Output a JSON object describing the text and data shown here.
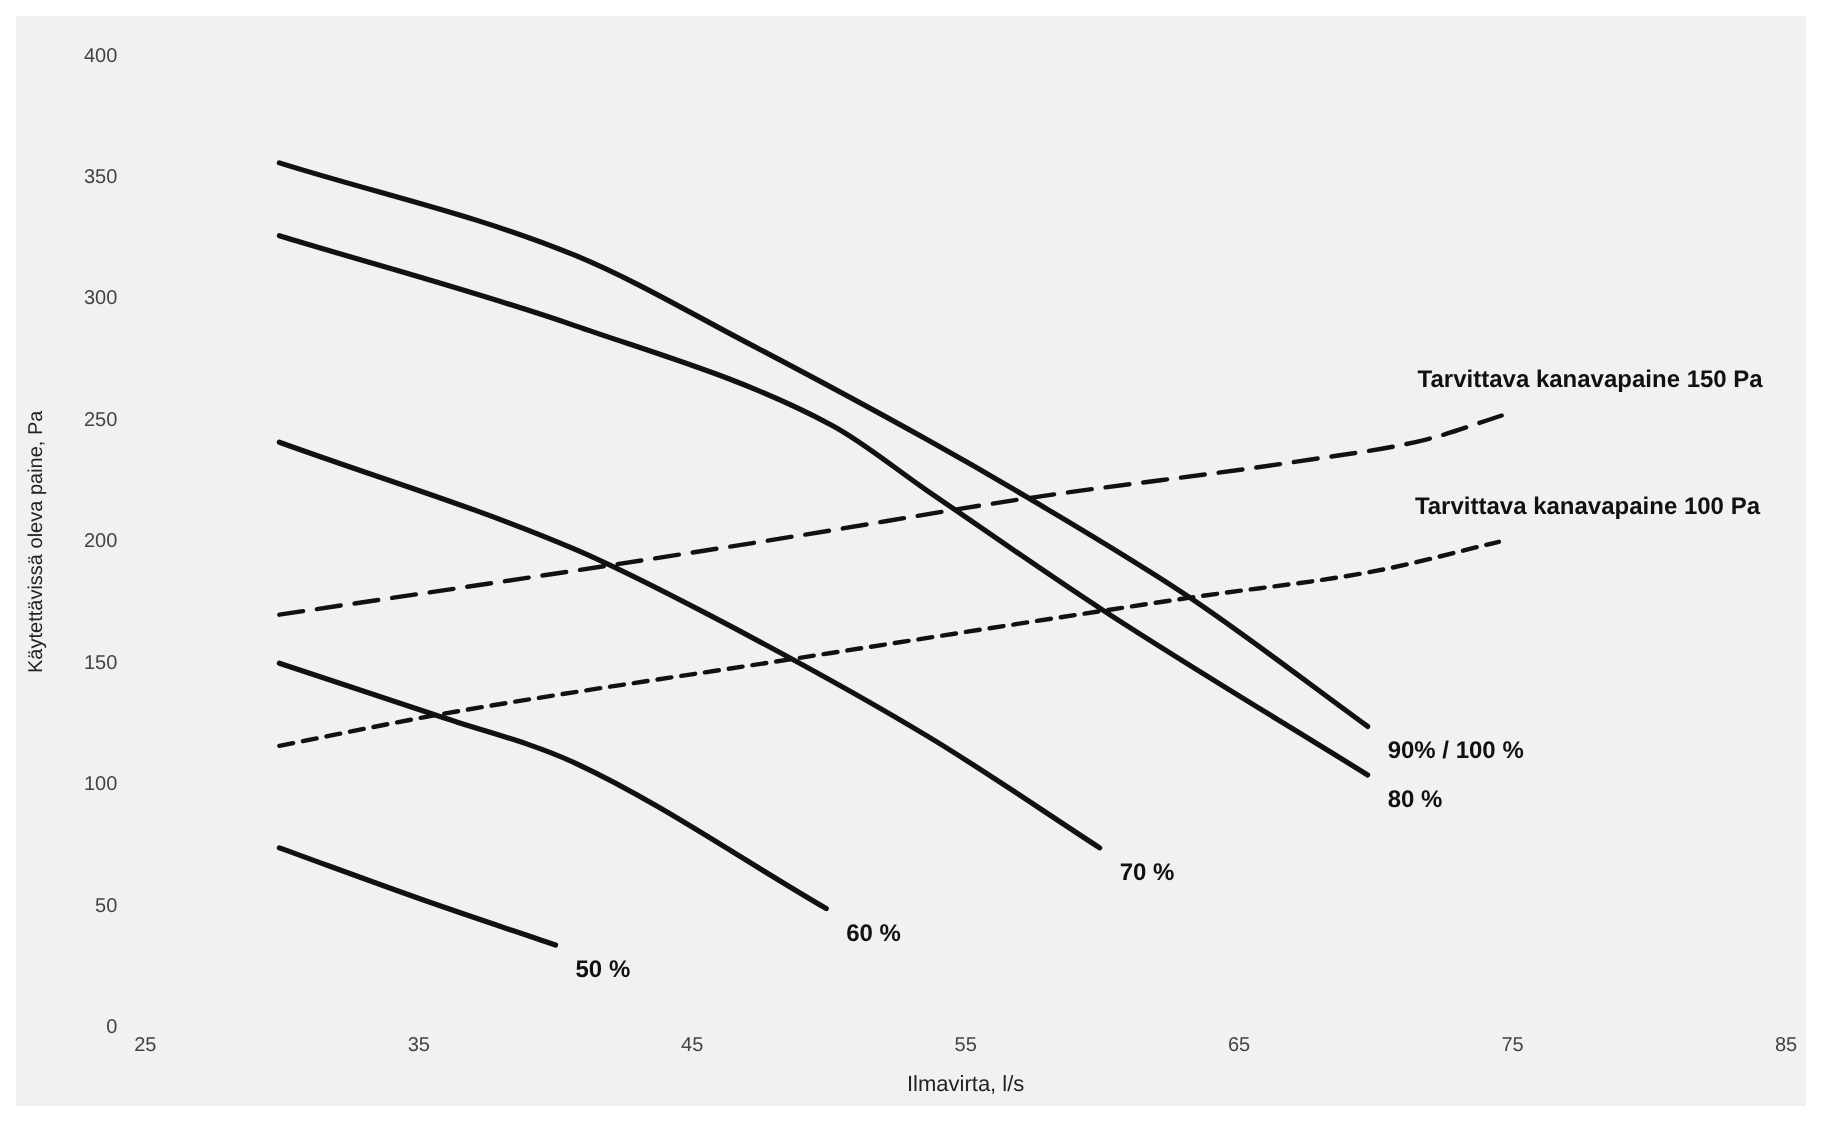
{
  "chart_data": {
    "type": "line",
    "xlabel": "Ilmavirta, l/s",
    "ylabel": "Käytettävissä oleva paine, Pa",
    "xlim": [
      25,
      85
    ],
    "xticks": [
      25,
      35,
      45,
      55,
      65,
      75,
      85
    ],
    "ylim": [
      0,
      400
    ],
    "yticks": [
      0,
      50,
      100,
      150,
      200,
      250,
      300,
      350,
      400
    ],
    "grid": false,
    "legend": false,
    "marker": "none",
    "series": [
      {
        "name": "90% / 100 %",
        "color": "#111111",
        "line_style": "solid",
        "x": [
          29.9,
          40.7,
          47.0,
          53.6,
          57.3,
          63.2,
          69.7
        ],
        "values": [
          356,
          318,
          282,
          242,
          218,
          177,
          124
        ]
      },
      {
        "name": "80 %",
        "color": "#111111",
        "line_style": "solid",
        "x": [
          29.9,
          40.7,
          50.1,
          53.6,
          60.0,
          69.7
        ],
        "values": [
          326,
          289,
          248,
          221,
          172,
          104
        ]
      },
      {
        "name": "70 %",
        "color": "#111111",
        "line_style": "solid",
        "x": [
          29.9,
          40.7,
          45.6,
          53.6,
          59.9
        ],
        "values": [
          241,
          197,
          170,
          120,
          74
        ]
      },
      {
        "name": "60 %",
        "color": "#111111",
        "line_style": "solid",
        "x": [
          29.9,
          35.8,
          40.7,
          49.9
        ],
        "values": [
          150,
          128,
          109,
          49
        ]
      },
      {
        "name": "50 %",
        "color": "#111111",
        "line_style": "solid",
        "x": [
          29.9,
          35.3,
          40.0
        ],
        "values": [
          74,
          52,
          34
        ]
      },
      {
        "name": "Tarvittava kanavapaine 150 Pa",
        "color": "#111111",
        "line_style": "dashed",
        "x": [
          29.9,
          41.8,
          48.6,
          57.3,
          67.1,
          71.8,
          74.6
        ],
        "values": [
          170,
          190,
          202,
          218,
          233,
          242,
          252
        ]
      },
      {
        "name": "Tarvittava kanavapaine 100 Pa",
        "color": "#111111",
        "line_style": "dotted",
        "x": [
          29.9,
          35.8,
          48.8,
          63.2,
          70.0,
          74.5
        ],
        "values": [
          116,
          129,
          152,
          177,
          188,
          200
        ]
      }
    ]
  }
}
